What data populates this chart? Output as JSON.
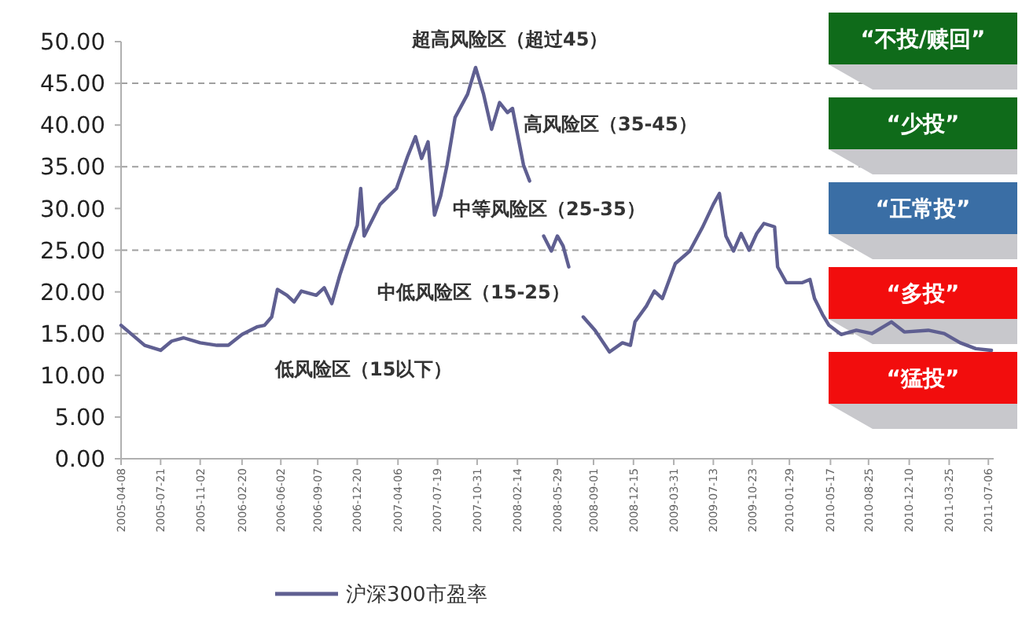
{
  "chart_data": {
    "type": "line",
    "x": [
      "2005-04-08",
      "2005-06-09",
      "2005-07-21",
      "2005-08-19",
      "2005-09-19",
      "2005-11-02",
      "2005-12-16",
      "2006-01-15",
      "2006-02-20",
      "2006-03-31",
      "2006-04-20",
      "2006-05-09",
      "2006-05-24",
      "2006-06-18",
      "2006-07-07",
      "2006-07-26",
      "2006-09-03",
      "2006-09-24",
      "2006-10-14",
      "2006-11-04",
      "2006-11-25",
      "2006-12-20",
      "2006-12-29",
      "2007-01-07",
      "2007-02-18",
      "2007-04-02",
      "2007-05-01",
      "2007-05-22",
      "2007-06-07",
      "2007-06-24",
      "2007-07-11",
      "2007-07-27",
      "2007-08-13",
      "2007-09-03",
      "2007-10-06",
      "2007-10-27",
      "2007-11-17",
      "2007-12-08",
      "2007-12-29",
      "2008-01-19",
      "2008-02-01",
      "2008-02-18",
      "2008-03-01",
      "2008-03-17",
      "2008-04-01",
      "2008-04-23",
      "2008-05-13",
      "2008-05-29",
      "2008-06-13",
      "2008-06-28",
      "2008-07-20",
      "2008-08-05",
      "2008-09-05",
      "2008-10-13",
      "2008-11-16",
      "2008-12-07",
      "2008-12-19",
      "2009-01-18",
      "2009-02-08",
      "2009-03-01",
      "2009-04-04",
      "2009-05-12",
      "2009-06-14",
      "2009-07-13",
      "2009-07-29",
      "2009-08-15",
      "2009-09-04",
      "2009-09-24",
      "2009-10-15",
      "2009-11-04",
      "2009-11-23",
      "2009-12-21",
      "2009-12-29",
      "2010-01-21",
      "2010-03-03",
      "2010-03-24",
      "2010-04-05",
      "2010-04-26",
      "2010-05-13",
      "2010-06-14",
      "2010-07-24",
      "2010-09-03",
      "2010-10-24",
      "2010-11-27",
      "2011-01-29",
      "2011-03-12",
      "2011-04-23",
      "2011-06-03",
      "2011-07-14"
    ],
    "series": [
      {
        "name": "沪深300市盈率",
        "color": "#5f5f91",
        "values": [
          16.0,
          13.6,
          13.0,
          14.1,
          14.5,
          13.9,
          13.6,
          13.6,
          14.9,
          15.8,
          16.0,
          17.0,
          20.3,
          19.6,
          18.8,
          20.1,
          19.6,
          20.5,
          18.6,
          22.0,
          24.9,
          28.0,
          32.4,
          26.7,
          30.5,
          32.4,
          36.2,
          38.6,
          36.0,
          38.0,
          29.2,
          31.5,
          35.2,
          40.9,
          43.7,
          46.9,
          43.7,
          39.5,
          42.7,
          41.5,
          42.0,
          38.0,
          35.2,
          33.3,
          null,
          26.7,
          24.9,
          26.7,
          25.5,
          23.0,
          null,
          17.0,
          15.4,
          12.8,
          13.9,
          13.6,
          16.4,
          18.3,
          20.1,
          19.2,
          23.4,
          24.9,
          27.7,
          30.5,
          31.8,
          26.7,
          24.9,
          27.0,
          25.0,
          27.0,
          28.2,
          27.8,
          23.0,
          21.1,
          21.1,
          21.5,
          19.2,
          17.3,
          16.0,
          14.9,
          15.4,
          15.0,
          16.4,
          15.2,
          15.4,
          15.0,
          13.9,
          13.2,
          13.0
        ]
      }
    ],
    "xlim": [
      "2005-04-08",
      "2011-07-20"
    ],
    "xticks": [
      {
        "value": "2005-04-08",
        "label": "2005-04-08"
      },
      {
        "value": "2005-07-21",
        "label": "2005-07-21"
      },
      {
        "value": "2005-11-02",
        "label": "2005-11-02"
      },
      {
        "value": "2006-02-20",
        "label": "2006-02-20"
      },
      {
        "value": "2006-06-02",
        "label": "2006-06-02"
      },
      {
        "value": "2006-09-07",
        "label": "2006-09-07"
      },
      {
        "value": "2006-12-20",
        "label": "2006-12-20"
      },
      {
        "value": "2007-04-06",
        "label": "2007-04-06"
      },
      {
        "value": "2007-07-19",
        "label": "2007-07-19"
      },
      {
        "value": "2007-10-31",
        "label": "2007-10-31"
      },
      {
        "value": "2008-02-14",
        "label": "2008-02-14"
      },
      {
        "value": "2008-05-29",
        "label": "2008-05-29"
      },
      {
        "value": "2008-09-01",
        "label": "2008-09-01"
      },
      {
        "value": "2008-12-15",
        "label": "2008-12-15"
      },
      {
        "value": "2009-03-31",
        "label": "2009-03-31"
      },
      {
        "value": "2009-07-13",
        "label": "2009-07-13"
      },
      {
        "value": "2009-10-23",
        "label": "2009-10-23"
      },
      {
        "value": "2010-01-29",
        "label": "2010-01-29"
      },
      {
        "value": "2010-05-17",
        "label": "2010-05-17"
      },
      {
        "value": "2010-08-25",
        "label": "2010-08-25"
      },
      {
        "value": "2010-12-10",
        "label": "2010-12-10"
      },
      {
        "value": "2011-03-25",
        "label": "2011-03-25"
      },
      {
        "value": "2011-07-06",
        "label": "2011-07-06"
      }
    ],
    "ylim": [
      0,
      50
    ],
    "yticks": [
      {
        "value": 0,
        "label": "0.00"
      },
      {
        "value": 5,
        "label": "5.00"
      },
      {
        "value": 10,
        "label": "10.00"
      },
      {
        "value": 15,
        "label": "15.00"
      },
      {
        "value": 20,
        "label": "20.00"
      },
      {
        "value": 25,
        "label": "25.00"
      },
      {
        "value": 30,
        "label": "30.00"
      },
      {
        "value": 35,
        "label": "35.00"
      },
      {
        "value": 40,
        "label": "40.00"
      },
      {
        "value": 45,
        "label": "45.00"
      },
      {
        "value": 50,
        "label": "50.00"
      }
    ],
    "ref_lines": [
      {
        "axis": "y",
        "value": 15,
        "color": "#a0a0a0",
        "line_style": "dashed"
      },
      {
        "axis": "y",
        "value": 25,
        "color": "#a0a0a0",
        "line_style": "dashed"
      },
      {
        "axis": "y",
        "value": 35,
        "color": "#a0a0a0",
        "line_style": "dashed"
      },
      {
        "axis": "y",
        "value": 45,
        "color": "#a0a0a0",
        "line_style": "dashed"
      }
    ],
    "annotations": [
      "超高风险区（超过45）",
      "高风险区（35-45）",
      "中等风险区（25-35）",
      "中低风险区（15-25）",
      "低风险区（15以下）",
      "“不投/赎回”",
      "“少投”",
      "“正常投”",
      "“多投”",
      "“猛投”"
    ],
    "legend": "bottom",
    "line_style": "solid",
    "marker": "none",
    "grid": false
  }
}
